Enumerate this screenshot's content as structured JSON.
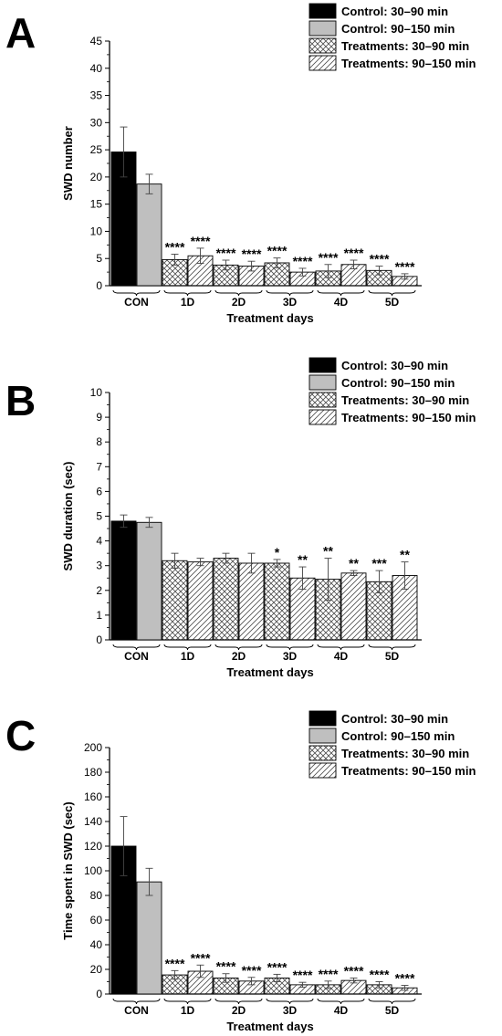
{
  "panel_letters": [
    "A",
    "B",
    "C"
  ],
  "legend_entries": [
    "Control: 30–90 min",
    "Control: 90–150 min",
    "Treatments: 30–90 min",
    "Treatments: 90–150 min"
  ],
  "colors": {
    "control_early": "#000000",
    "control_late": "#bfbfbf",
    "hatch": "#4d4d4d",
    "axis": "#000000"
  },
  "chart_data": [
    {
      "type": "bar",
      "panel": "A",
      "title": "",
      "xlabel": "Treatment days",
      "ylabel": "SWD number",
      "ylim": [
        0,
        45
      ],
      "yticks": [
        0,
        5,
        10,
        15,
        20,
        25,
        30,
        35,
        40,
        45
      ],
      "categories": [
        "CON",
        "1D",
        "2D",
        "3D",
        "4D",
        "5D"
      ],
      "series": [
        {
          "name": "Control: 30–90 min",
          "values": [
            24.6,
            null,
            null,
            null,
            null,
            null
          ],
          "errors": [
            4.6,
            null,
            null,
            null,
            null,
            null
          ],
          "sig": [
            "",
            "",
            "",
            "",
            "",
            ""
          ]
        },
        {
          "name": "Control: 90–150 min",
          "values": [
            18.7,
            null,
            null,
            null,
            null,
            null
          ],
          "errors": [
            1.8,
            null,
            null,
            null,
            null,
            null
          ],
          "sig": [
            "",
            "",
            "",
            "",
            "",
            ""
          ]
        },
        {
          "name": "Treatments: 30–90 min",
          "values": [
            null,
            4.8,
            3.8,
            4.2,
            2.7,
            2.8
          ],
          "errors": [
            null,
            1.0,
            0.9,
            0.9,
            1.2,
            0.8
          ],
          "sig": [
            "",
            "****",
            "****",
            "****",
            "****",
            "****"
          ]
        },
        {
          "name": "Treatments: 90–150 min",
          "values": [
            null,
            5.5,
            3.6,
            2.5,
            3.9,
            1.7
          ],
          "errors": [
            null,
            1.4,
            0.9,
            0.7,
            0.8,
            0.5
          ],
          "sig": [
            "",
            "****",
            "****",
            "****",
            "****",
            "****"
          ]
        }
      ],
      "legend": "top-right",
      "grid": false
    },
    {
      "type": "bar",
      "panel": "B",
      "title": "",
      "xlabel": "Treatment days",
      "ylabel": "SWD duration (sec)",
      "ylim": [
        0,
        10
      ],
      "yticks": [
        0,
        1,
        2,
        3,
        4,
        5,
        6,
        7,
        8,
        9,
        10
      ],
      "categories": [
        "CON",
        "1D",
        "2D",
        "3D",
        "4D",
        "5D"
      ],
      "series": [
        {
          "name": "Control: 30–90 min",
          "values": [
            4.8,
            null,
            null,
            null,
            null,
            null
          ],
          "errors": [
            0.25,
            null,
            null,
            null,
            null,
            null
          ],
          "sig": [
            "",
            "",
            "",
            "",
            "",
            ""
          ]
        },
        {
          "name": "Control: 90–150 min",
          "values": [
            4.75,
            null,
            null,
            null,
            null,
            null
          ],
          "errors": [
            0.2,
            null,
            null,
            null,
            null,
            null
          ],
          "sig": [
            "",
            "",
            "",
            "",
            "",
            ""
          ]
        },
        {
          "name": "Treatments: 30–90 min",
          "values": [
            null,
            3.2,
            3.3,
            3.1,
            2.45,
            2.35
          ],
          "errors": [
            null,
            0.3,
            0.2,
            0.15,
            0.85,
            0.45
          ],
          "sig": [
            "",
            "",
            "",
            "*",
            "**",
            "***"
          ]
        },
        {
          "name": "Treatments: 90–150 min",
          "values": [
            null,
            3.15,
            3.1,
            2.5,
            2.7,
            2.6
          ],
          "errors": [
            null,
            0.15,
            0.4,
            0.45,
            0.1,
            0.55
          ],
          "sig": [
            "",
            "",
            "",
            "**",
            "**",
            "**"
          ]
        }
      ],
      "legend": "top-right",
      "grid": false
    },
    {
      "type": "bar",
      "panel": "C",
      "title": "",
      "xlabel": "Treatment days",
      "ylabel": "Time spent in SWD (sec)",
      "ylim": [
        0,
        200
      ],
      "yticks": [
        0,
        20,
        40,
        60,
        80,
        100,
        120,
        140,
        160,
        180,
        200
      ],
      "categories": [
        "CON",
        "1D",
        "2D",
        "3D",
        "4D",
        "5D"
      ],
      "series": [
        {
          "name": "Control: 30–90 min",
          "values": [
            120,
            null,
            null,
            null,
            null,
            null
          ],
          "errors": [
            24,
            null,
            null,
            null,
            null,
            null
          ],
          "sig": [
            "",
            "",
            "",
            "",
            "",
            ""
          ]
        },
        {
          "name": "Control: 90–150 min",
          "values": [
            91,
            null,
            null,
            null,
            null,
            null
          ],
          "errors": [
            11,
            null,
            null,
            null,
            null,
            null
          ],
          "sig": [
            "",
            "",
            "",
            "",
            "",
            ""
          ]
        },
        {
          "name": "Treatments: 30–90 min",
          "values": [
            null,
            15.5,
            13,
            13,
            7.5,
            7.5
          ],
          "errors": [
            null,
            3.5,
            3.5,
            3,
            3,
            2.5
          ],
          "sig": [
            "",
            "****",
            "****",
            "****",
            "****",
            "****"
          ]
        },
        {
          "name": "Treatments: 90–150 min",
          "values": [
            null,
            18.5,
            10.5,
            7.5,
            11,
            5
          ],
          "errors": [
            null,
            5,
            3,
            2,
            2,
            2
          ],
          "sig": [
            "",
            "****",
            "****",
            "****",
            "****",
            "****"
          ]
        }
      ],
      "legend": "top-right",
      "grid": false
    }
  ]
}
